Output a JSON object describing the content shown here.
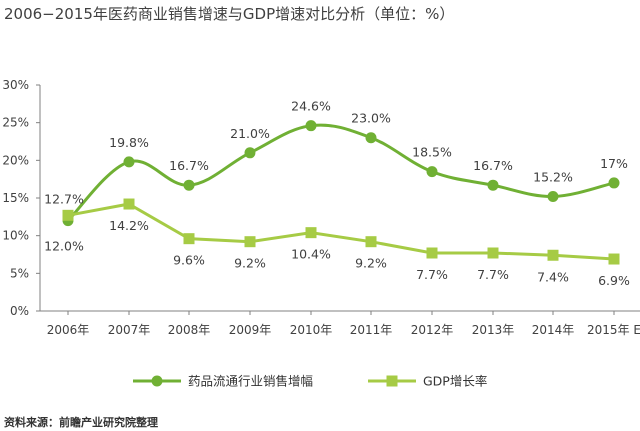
{
  "title": "2006−2015年医药商业销售增速与GDP增速对比分析（单位：%）",
  "source": "资料来源：前瞻产业研究院整理",
  "chart_data": {
    "type": "line",
    "categories": [
      "2006年",
      "2007年",
      "2008年",
      "2009年",
      "2010年",
      "2011年",
      "2012年",
      "2013年",
      "2014年",
      "2015年 E"
    ],
    "y_ticks": [
      "0%",
      "5%",
      "10%",
      "15%",
      "20%",
      "25%",
      "30%"
    ],
    "ylim": [
      0,
      30
    ],
    "grid": false,
    "legend_position": "bottom",
    "series": [
      {
        "name": "药品流通行业销售增幅",
        "color": "#70b034",
        "marker": "circle",
        "values": [
          12.0,
          19.8,
          16.7,
          21.0,
          24.6,
          23.0,
          18.5,
          16.7,
          15.2,
          17.0
        ],
        "labels": [
          "12.0%",
          "19.8%",
          "16.7%",
          "21.0%",
          "24.6%",
          "23.0%",
          "18.5%",
          "16.7%",
          "15.2%",
          "17%"
        ]
      },
      {
        "name": "GDP增长率",
        "color": "#a6cb45",
        "marker": "square",
        "values": [
          12.7,
          14.2,
          9.6,
          9.2,
          10.4,
          9.2,
          7.7,
          7.7,
          7.4,
          6.9
        ],
        "labels": [
          "12.7%",
          "14.2%",
          "9.6%",
          "9.2%",
          "10.4%",
          "9.2%",
          "7.7%",
          "7.7%",
          "7.4%",
          "6.9%"
        ]
      }
    ]
  }
}
